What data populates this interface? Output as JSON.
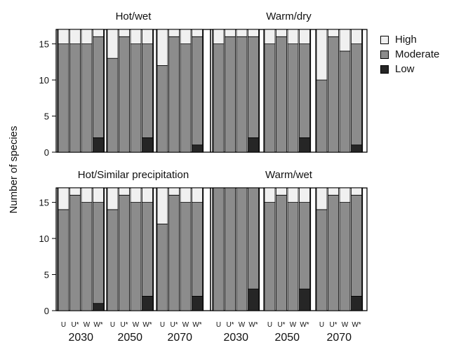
{
  "chart_data": {
    "type": "bar",
    "stacked": true,
    "ylabel": "Number of species",
    "ylim": [
      0,
      17
    ],
    "yticks": [
      0,
      5,
      10,
      15
    ],
    "grid": false,
    "legend_position": "right",
    "series_names": [
      "High",
      "Moderate",
      "Low"
    ],
    "colors": {
      "High": "#f0f0f0",
      "Moderate": "#8c8c8c",
      "Low": "#262626"
    },
    "bar_labels": [
      "U",
      "U*",
      "W",
      "W*"
    ],
    "years": [
      "2030",
      "2050",
      "2070"
    ],
    "panels": [
      {
        "title": "Hot/wet",
        "bars": {
          "2030": [
            [
              2,
              15,
              0
            ],
            [
              2,
              15,
              0
            ],
            [
              2,
              15,
              0
            ],
            [
              1,
              14,
              2
            ]
          ],
          "2050": [
            [
              4,
              13,
              0
            ],
            [
              1,
              16,
              0
            ],
            [
              2,
              15,
              0
            ],
            [
              2,
              13,
              2
            ]
          ],
          "2070": [
            [
              5,
              12,
              0
            ],
            [
              1,
              16,
              0
            ],
            [
              2,
              15,
              0
            ],
            [
              1,
              15,
              1
            ]
          ]
        }
      },
      {
        "title": "Warm/dry",
        "bars": {
          "2030": [
            [
              2,
              15,
              0
            ],
            [
              1,
              16,
              0
            ],
            [
              1,
              16,
              0
            ],
            [
              1,
              14,
              2
            ]
          ],
          "2050": [
            [
              2,
              15,
              0
            ],
            [
              1,
              16,
              0
            ],
            [
              2,
              15,
              0
            ],
            [
              2,
              13,
              2
            ]
          ],
          "2070": [
            [
              7,
              10,
              0
            ],
            [
              1,
              16,
              0
            ],
            [
              3,
              14,
              0
            ],
            [
              2,
              14,
              1
            ]
          ]
        }
      },
      {
        "title": "Hot/Similar precipitation",
        "bars": {
          "2030": [
            [
              3,
              14,
              0
            ],
            [
              1,
              16,
              0
            ],
            [
              2,
              15,
              0
            ],
            [
              2,
              14,
              1
            ]
          ],
          "2050": [
            [
              3,
              14,
              0
            ],
            [
              1,
              16,
              0
            ],
            [
              2,
              15,
              0
            ],
            [
              2,
              13,
              2
            ]
          ],
          "2070": [
            [
              5,
              12,
              0
            ],
            [
              1,
              16,
              0
            ],
            [
              2,
              15,
              0
            ],
            [
              2,
              13,
              2
            ]
          ]
        }
      },
      {
        "title": "Warm/wet",
        "bars": {
          "2030": [
            [
              0,
              17,
              0
            ],
            [
              0,
              17,
              0
            ],
            [
              0,
              17,
              0
            ],
            [
              0,
              14,
              3
            ]
          ],
          "2050": [
            [
              2,
              15,
              0
            ],
            [
              1,
              16,
              0
            ],
            [
              2,
              15,
              0
            ],
            [
              2,
              12,
              3
            ]
          ],
          "2070": [
            [
              3,
              14,
              0
            ],
            [
              1,
              16,
              0
            ],
            [
              2,
              15,
              0
            ],
            [
              1,
              14,
              2
            ]
          ]
        }
      }
    ]
  }
}
